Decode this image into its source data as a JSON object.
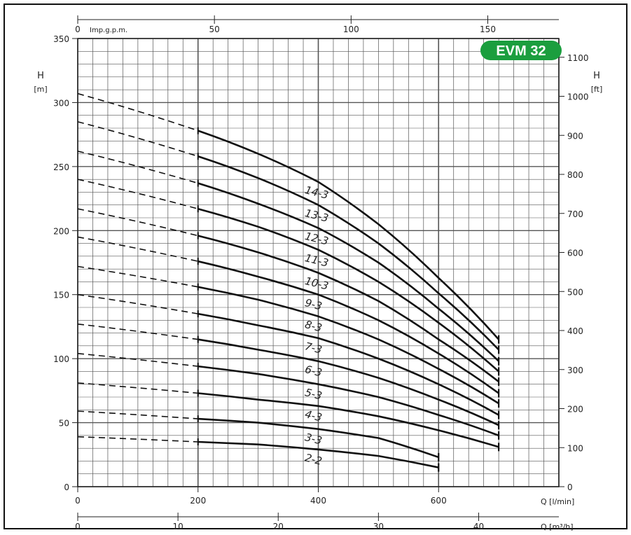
{
  "badge": {
    "label": "EVM 32",
    "color": "#1b9e3e"
  },
  "chart_data": {
    "type": "line",
    "title": "",
    "x_primary": {
      "label": "Q [l/min]",
      "range": [
        0,
        800
      ],
      "ticks": [
        0,
        200,
        400,
        600
      ]
    },
    "x_top": {
      "label": "Imp.g.p.m.",
      "range": [
        0,
        176
      ],
      "ticks": [
        0,
        50,
        100,
        150
      ],
      "tick_labels": [
        "0",
        "50",
        "100",
        "150"
      ]
    },
    "x_bottom2": {
      "label": "Q [m³/h]",
      "range": [
        0,
        48
      ],
      "ticks": [
        0,
        10,
        20,
        30,
        40
      ]
    },
    "y_left": {
      "label_top": "H",
      "label_unit": "[m]",
      "range": [
        0,
        350
      ],
      "ticks": [
        0,
        50,
        100,
        150,
        200,
        250,
        300,
        350
      ]
    },
    "y_right": {
      "label_top": "H",
      "label_unit": "[ft]",
      "range": [
        0,
        1148
      ],
      "ticks": [
        0,
        100,
        200,
        300,
        400,
        500,
        600,
        700,
        800,
        900,
        1000,
        1100
      ]
    },
    "grid": true,
    "dashed_region_end_x": 200,
    "series": [
      {
        "name": "14-3",
        "x": [
          0,
          200,
          300,
          400,
          500,
          600,
          700
        ],
        "y": [
          307,
          278,
          260,
          238,
          205,
          163,
          115
        ]
      },
      {
        "name": "13-3",
        "x": [
          0,
          200,
          300,
          400,
          500,
          600,
          700
        ],
        "y": [
          285,
          258,
          241,
          220,
          190,
          151,
          107
        ]
      },
      {
        "name": "12-3",
        "x": [
          0,
          200,
          300,
          400,
          500,
          600,
          700
        ],
        "y": [
          262,
          237,
          221,
          202,
          175,
          139,
          98
        ]
      },
      {
        "name": "11-3",
        "x": [
          0,
          200,
          300,
          400,
          500,
          600,
          700
        ],
        "y": [
          240,
          217,
          203,
          185,
          160,
          128,
          90
        ]
      },
      {
        "name": "10-3",
        "x": [
          0,
          200,
          300,
          400,
          500,
          600,
          700
        ],
        "y": [
          217,
          196,
          183,
          167,
          145,
          115,
          82
        ]
      },
      {
        "name": "9-3",
        "x": [
          0,
          200,
          300,
          400,
          500,
          600,
          700
        ],
        "y": [
          195,
          176,
          164,
          150,
          130,
          104,
          73
        ]
      },
      {
        "name": "8-3",
        "x": [
          0,
          200,
          300,
          400,
          500,
          600,
          700
        ],
        "y": [
          172,
          156,
          146,
          133,
          115,
          92,
          65
        ]
      },
      {
        "name": "7-3",
        "x": [
          0,
          200,
          300,
          400,
          500,
          600,
          700
        ],
        "y": [
          150,
          135,
          126,
          116,
          100,
          80,
          56
        ]
      },
      {
        "name": "6-3",
        "x": [
          0,
          200,
          300,
          400,
          500,
          600,
          700
        ],
        "y": [
          127,
          115,
          107,
          98,
          85,
          68,
          48
        ]
      },
      {
        "name": "5-3",
        "x": [
          0,
          200,
          300,
          400,
          500,
          600,
          700
        ],
        "y": [
          104,
          94,
          88,
          80,
          70,
          56,
          40
        ]
      },
      {
        "name": "4-3",
        "x": [
          0,
          200,
          300,
          400,
          500,
          600,
          700
        ],
        "y": [
          81,
          73,
          68,
          63,
          55,
          44,
          31
        ]
      },
      {
        "name": "3-3",
        "x": [
          0,
          200,
          300,
          400,
          500,
          600
        ],
        "y": [
          59,
          53,
          50,
          45,
          38,
          23
        ]
      },
      {
        "name": "2-2",
        "x": [
          0,
          200,
          300,
          400,
          500,
          600
        ],
        "y": [
          39,
          35,
          33,
          29,
          24,
          15
        ]
      }
    ]
  }
}
